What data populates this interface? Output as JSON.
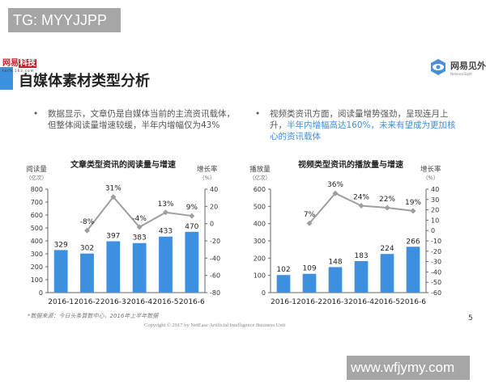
{
  "watermarks": {
    "top": "TG: MYYJJPP",
    "bottom": "www.wfjymy.com"
  },
  "brand": {
    "name_left": "网易",
    "name_right": "科技",
    "sub": "tech.163.com"
  },
  "page_title": "自媒体素材类型分析",
  "partner": {
    "name_cn": "网易见外",
    "name_en": "NeteaseSight",
    "icon": "eye-hex-icon"
  },
  "bullets": [
    {
      "text_plain": "数据显示，文章仍是自媒体当前的主流资讯载体，但整体阅读量增速较缓，半年内增幅仅为43%",
      "highlight": ""
    },
    {
      "text_plain": "视频类资讯方面，阅读量增势强劲，呈现连月上升，",
      "highlight": "半年内增幅高达160%，未来有望成为更加核心的资讯载体"
    }
  ],
  "chart_data": [
    {
      "type": "bar+line",
      "title": "文章类型资讯的阅读量与增速",
      "categories": [
        "2016-1",
        "2016-2",
        "2016-3",
        "2016-4",
        "2016-5",
        "2016-6"
      ],
      "series": [
        {
          "name": "阅读量",
          "type": "bar",
          "axis": "left",
          "values": [
            329,
            302,
            397,
            383,
            433,
            470
          ],
          "color": "#3d8fe0"
        },
        {
          "name": "增长率",
          "type": "line",
          "axis": "right",
          "values": [
            null,
            -8,
            31,
            -4,
            13,
            9
          ],
          "labels": [
            "",
            "-8%",
            "31%",
            "-4%",
            "13%",
            "9%"
          ],
          "color": "#9e9e9e"
        }
      ],
      "ylabel": "阅读量",
      "ylabel_unit": "（亿次）",
      "ylim": [
        0,
        800
      ],
      "yticks": [
        0,
        100,
        200,
        300,
        400,
        500,
        600,
        700,
        800
      ],
      "y2label": "增长率",
      "y2label_unit": "（%）",
      "y2lim": [
        -80,
        40
      ],
      "y2ticks": [
        -80,
        -60,
        -40,
        -20,
        0,
        20,
        40
      ],
      "grid": false
    },
    {
      "type": "bar+line",
      "title": "视频类型资讯的播放量与增速",
      "categories": [
        "2016-1",
        "2016-2",
        "2016-3",
        "2016-4",
        "2016-5",
        "2016-6"
      ],
      "series": [
        {
          "name": "播放量",
          "type": "bar",
          "axis": "left",
          "values": [
            102,
            109,
            148,
            183,
            224,
            266
          ],
          "color": "#3d8fe0"
        },
        {
          "name": "增长率",
          "type": "line",
          "axis": "right",
          "values": [
            null,
            7,
            36,
            24,
            22,
            19
          ],
          "labels": [
            "",
            "7%",
            "36%",
            "24%",
            "22%",
            "19%"
          ],
          "color": "#9e9e9e"
        }
      ],
      "ylabel": "播放量",
      "ylabel_unit": "（亿次）",
      "ylim": [
        0,
        600
      ],
      "yticks": [
        0,
        100,
        200,
        300,
        400,
        500,
        600
      ],
      "y2label": "增长率",
      "y2label_unit": "（%）",
      "y2lim": [
        -60,
        40
      ],
      "y2ticks": [
        -60,
        -50,
        -40,
        -30,
        -20,
        -10,
        0,
        10,
        20,
        30,
        40
      ],
      "grid": false
    }
  ],
  "footnote": "*数据来源：今日头条算数中心，2016年上半年数据",
  "copyright": "Copyright © 2017 by NetEase Artificial Intelligence Business Unit",
  "page_number": "5"
}
